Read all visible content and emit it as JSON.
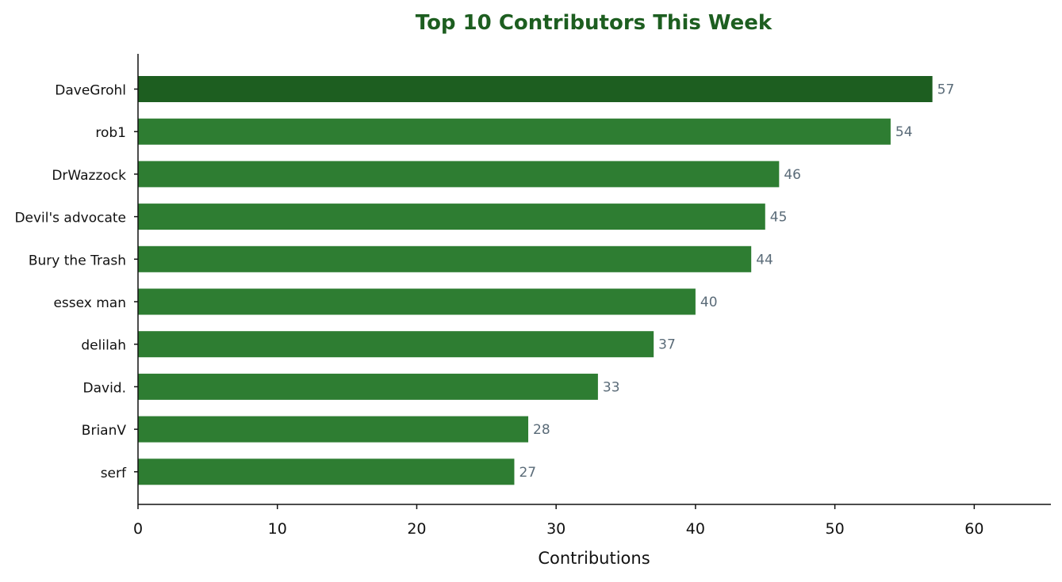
{
  "chart_data": {
    "type": "bar",
    "orientation": "horizontal",
    "title": "Top 10 Contributors This Week",
    "xlabel": "Contributions",
    "ylabel": "",
    "xlim": [
      0,
      65.5
    ],
    "xticks": [
      0,
      10,
      20,
      30,
      40,
      50,
      60
    ],
    "categories": [
      "DaveGrohl",
      "rob1",
      "DrWazzock",
      "Devil's advocate",
      "Bury the Trash",
      "essex man",
      "delilah",
      "David.",
      "BrianV",
      "serf"
    ],
    "values": [
      57,
      54,
      46,
      45,
      44,
      40,
      37,
      33,
      28,
      27
    ],
    "grid": false,
    "data_labels": true,
    "colors": {
      "top": "#1d5e20",
      "bar": "#2e7d32",
      "value_label": "#5a6b78",
      "title": "#1d5e20"
    }
  }
}
